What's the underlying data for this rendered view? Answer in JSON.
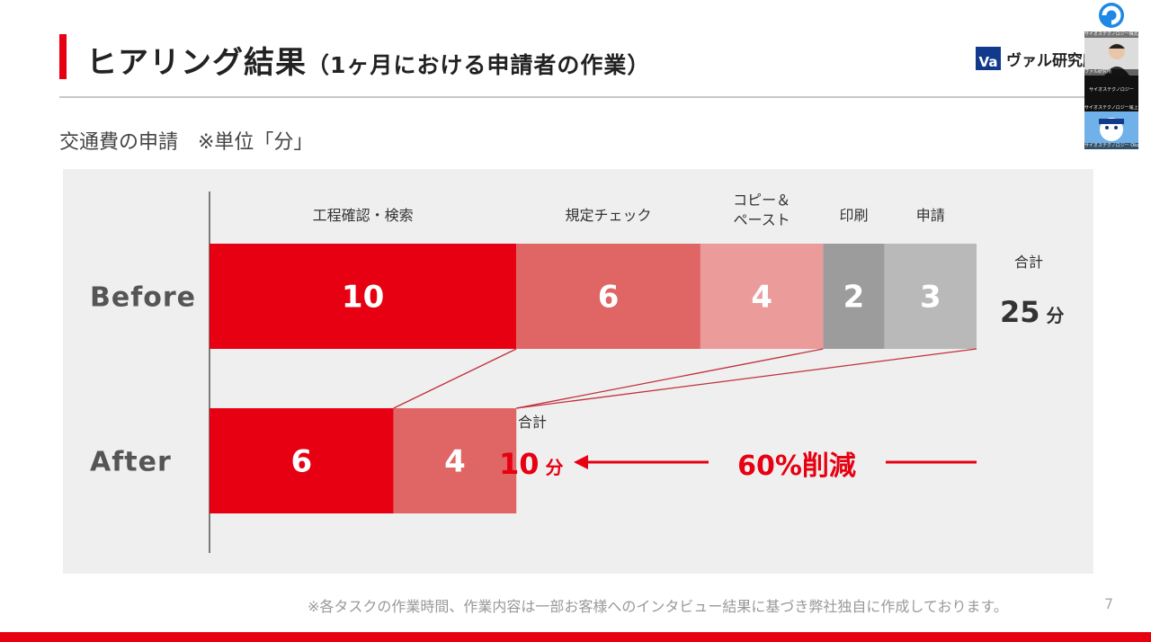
{
  "header": {
    "title": "ヒアリング結果",
    "subtitle": "（1ヶ月における申請者の作業）",
    "logo_mark": "Va",
    "logo_text": "ヴァル研究所"
  },
  "section_label": "交通費の申請　※単位「分」",
  "colors": {
    "accent": "#e60012",
    "seg1": "#e60012",
    "seg2": "#e06565",
    "seg3": "#ec9b9b",
    "seg4": "#9c9c9c",
    "seg5": "#b9b9b9",
    "panel": "#efefef"
  },
  "chart_data": {
    "type": "bar",
    "orientation": "horizontal",
    "stacked": true,
    "unit": "分",
    "categories": [
      "Before",
      "After"
    ],
    "series": [
      {
        "name": "工程確認・検索",
        "values": [
          10,
          6
        ]
      },
      {
        "name": "規定チェック",
        "values": [
          6,
          4
        ]
      },
      {
        "name": "コピー＆\nペースト",
        "values": [
          4,
          0
        ]
      },
      {
        "name": "印刷",
        "values": [
          2,
          0
        ]
      },
      {
        "name": "申請",
        "values": [
          3,
          0
        ]
      }
    ],
    "totals": [
      {
        "caption": "合計",
        "value": "25",
        "unit": "分"
      },
      {
        "caption": "合計",
        "value": "10",
        "unit": "分"
      }
    ],
    "reduction_label": "60%削減",
    "xlim": [
      0,
      25
    ]
  },
  "footnote": "※各タスクの作業時間、作業内容は一部お客様へのインタビュー結果に基づき弊社独自に作成しております。",
  "page_number": "7",
  "video_thumbs": [
    {
      "caption": "サイオステクノロジー株式会社",
      "icon": "company-logo-icon"
    },
    {
      "caption": "ヴァル研究所",
      "icon": "person-avatar-icon"
    },
    {
      "caption": "サイオステクノロジー",
      "icon": ""
    },
    {
      "caption": "サイオステクノロジー尾上",
      "icon": ""
    },
    {
      "caption": "サイオステクノロジー Okawa",
      "icon": "mascot-avatar-icon"
    }
  ]
}
